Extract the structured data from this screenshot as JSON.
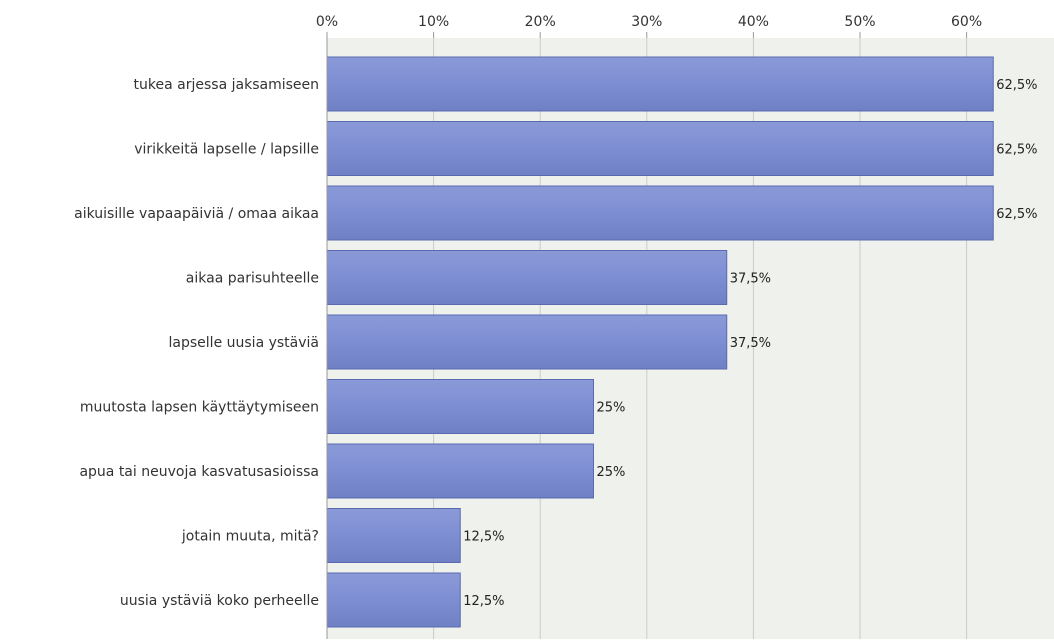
{
  "chart_data": {
    "type": "bar",
    "orientation": "horizontal",
    "categories": [
      "tukea arjessa jaksamiseen",
      "virikkeitä lapselle / lapsille",
      "aikuisille vapaapäiviä / omaa aikaa",
      "aikaa parisuhteelle",
      "lapselle uusia ystäviä",
      "muutosta lapsen käyttäytymiseen",
      "apua tai neuvoja kasvatusasioissa",
      "jotain muuta, mitä?",
      "uusia ystäviä koko perheelle"
    ],
    "values": [
      62.5,
      62.5,
      62.5,
      37.5,
      37.5,
      25,
      25,
      12.5,
      12.5
    ],
    "value_labels": [
      "62,5%",
      "62,5%",
      "62,5%",
      "37,5%",
      "37,5%",
      "25%",
      "25%",
      "12,5%",
      "12,5%"
    ],
    "x_ticks": [
      0,
      10,
      20,
      30,
      40,
      50,
      60
    ],
    "x_tick_labels": [
      "0%",
      "10%",
      "20%",
      "30%",
      "40%",
      "50%",
      "60%"
    ],
    "xlim": [
      0,
      68.2
    ],
    "axis_position": "top",
    "grid": true,
    "colors": {
      "bar_fill_top": "#8a9ad8",
      "bar_fill_mid": "#7f8fd3",
      "bar_fill_bottom": "#6f80c4",
      "bar_stroke": "#5b6ab0",
      "plot_bg": "#eef1ec",
      "grid": "#c9cdc6",
      "axis": "#999999"
    }
  }
}
